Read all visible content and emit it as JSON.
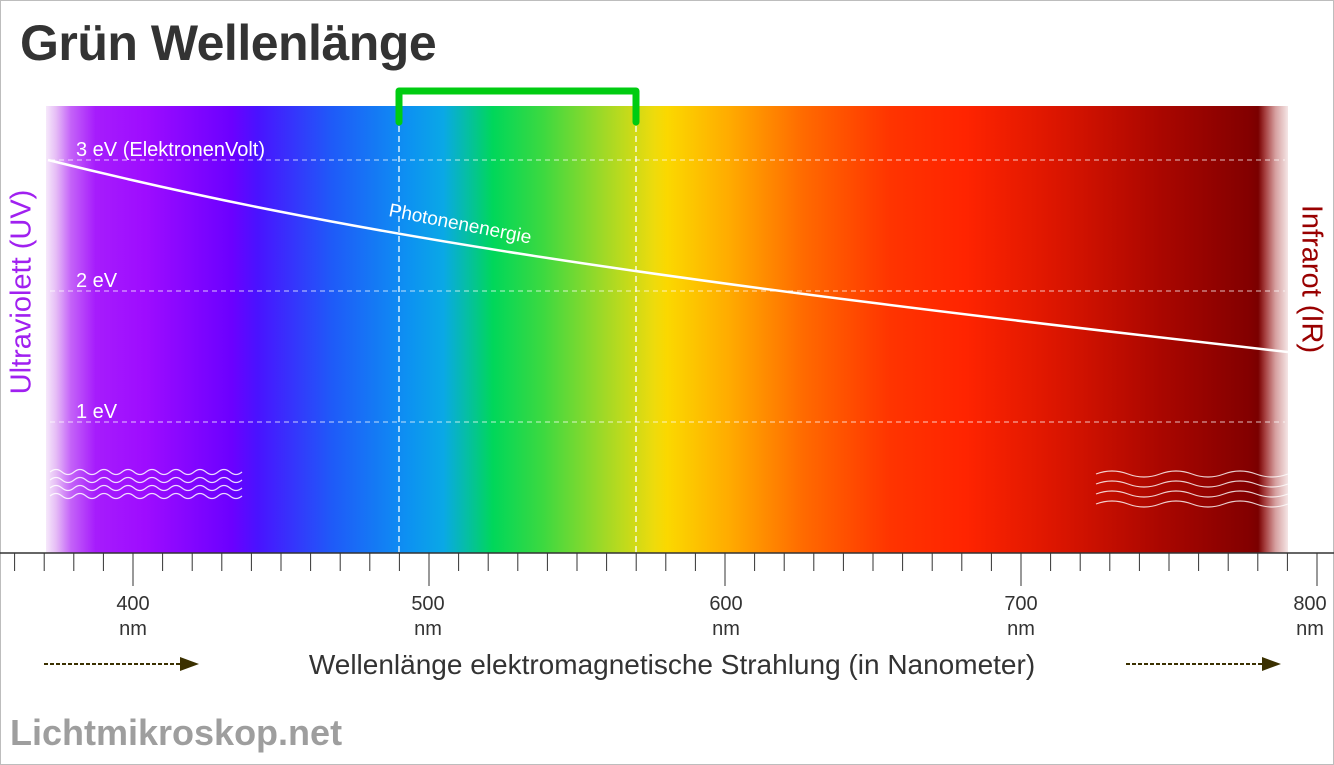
{
  "title": "Grün Wellenlänge",
  "left_label": "Ultraviolett (UV)",
  "right_label": "Infrarot (IR)",
  "footer": "Lichtmikroskop.net",
  "axis": {
    "title": "Wellenlänge elektromagnetische Strahlung (in Nanometer)",
    "unit": "nm",
    "ticks": [
      "400",
      "500",
      "600",
      "700",
      "800"
    ]
  },
  "energy_levels": [
    {
      "label": "3 eV (ElektronenVolt)",
      "value": 3
    },
    {
      "label": "2 eV",
      "value": 2
    },
    {
      "label": "1 eV",
      "value": 1
    }
  ],
  "curve_label": "Photonenenergie",
  "highlight": {
    "range_nm": [
      490,
      570
    ],
    "color": "#00cc11"
  },
  "colors": {
    "title": "#333333",
    "uv": "#a020f0",
    "ir": "#990000",
    "footer": "#9e9e9e",
    "arrow": "#3b3000"
  }
}
